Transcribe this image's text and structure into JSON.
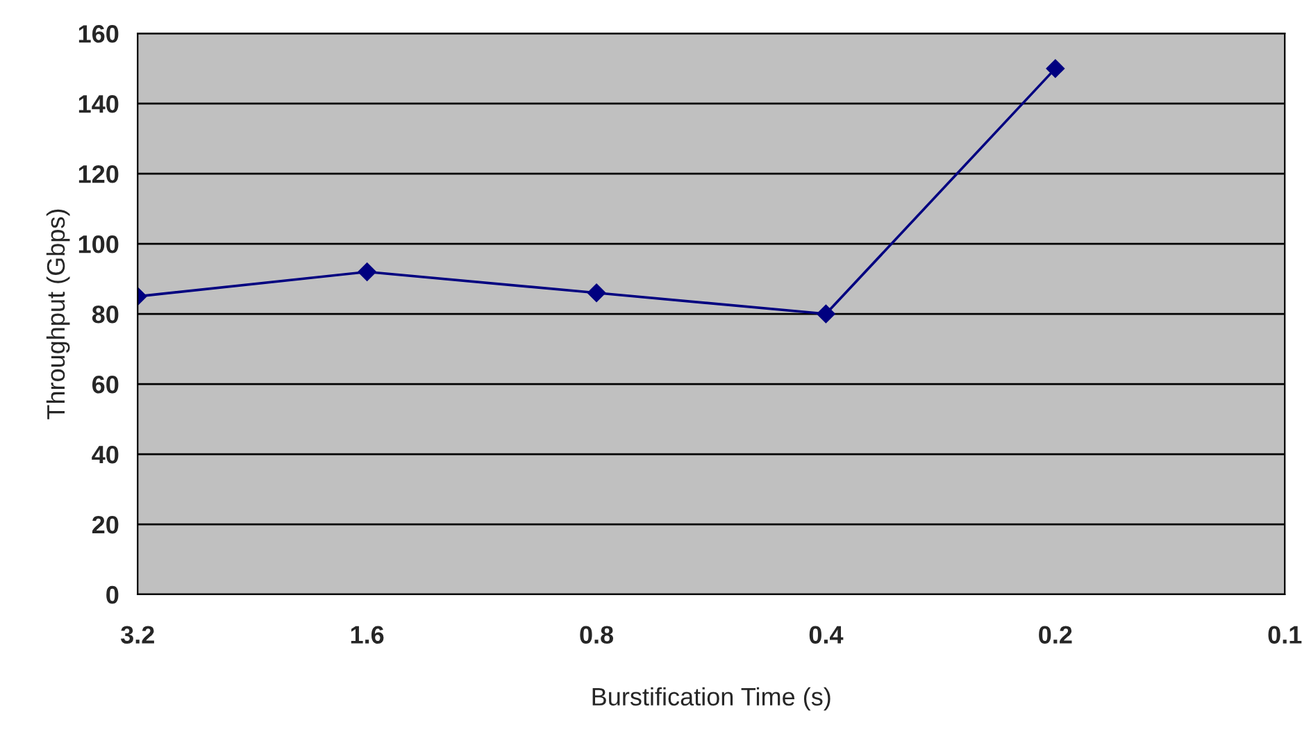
{
  "chart_data": {
    "type": "line",
    "xlabel": "Burstification Time (s)",
    "ylabel": "Throughput (Gbps)",
    "categories": [
      "3.2",
      "1.6",
      "0.8",
      "0.4",
      "0.2",
      "0.1"
    ],
    "series": [
      {
        "color": "#000080",
        "values": [
          85,
          92,
          86,
          80,
          150,
          null
        ]
      }
    ],
    "ylim": [
      0,
      160
    ],
    "yticks": [
      0,
      20,
      40,
      60,
      80,
      100,
      120,
      140,
      160
    ],
    "grid": "y",
    "marker": "diamond",
    "line_style": "solid",
    "legend": false
  }
}
